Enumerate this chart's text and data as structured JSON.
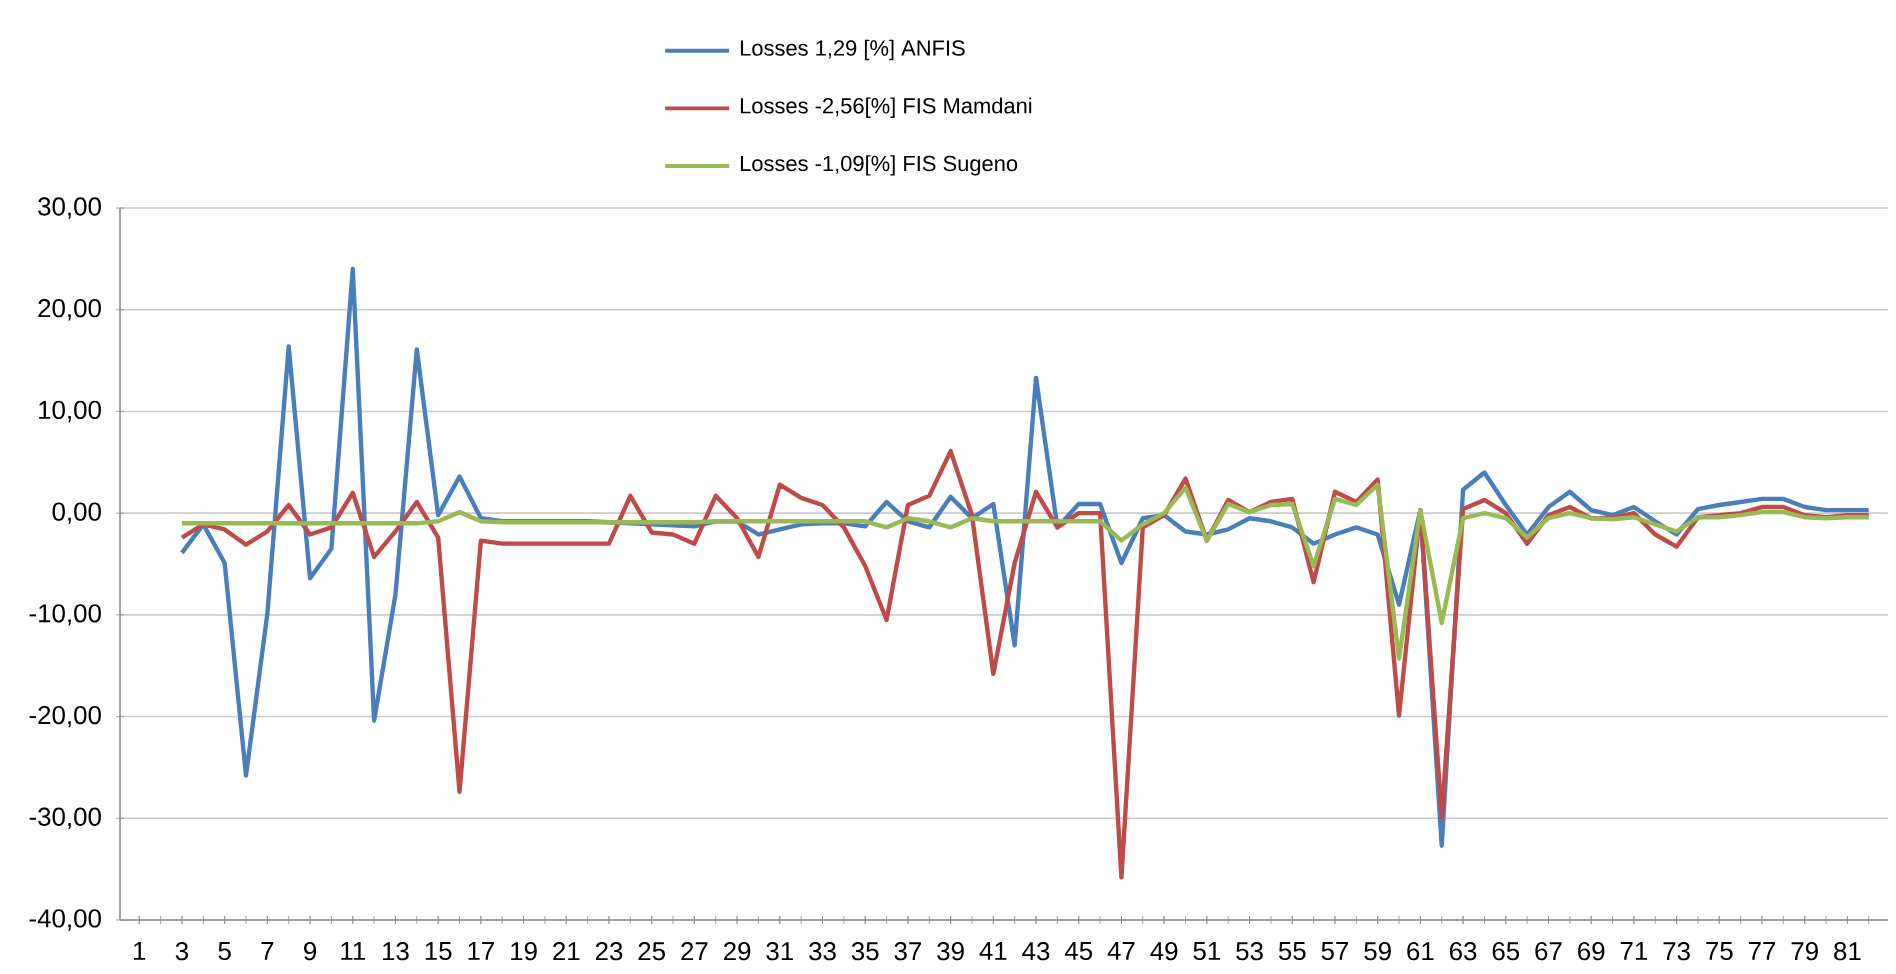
{
  "chart_data": {
    "type": "line",
    "categories": [
      "1",
      null,
      "3",
      null,
      "5",
      null,
      "7",
      null,
      "9",
      null,
      "11",
      null,
      "13",
      null,
      "15",
      null,
      "17",
      null,
      "19",
      null,
      "21",
      null,
      "23",
      null,
      "25",
      null,
      "27",
      null,
      "29",
      null,
      "31",
      null,
      "33",
      null,
      "35",
      null,
      "37",
      null,
      "39",
      null,
      "41",
      null,
      "43",
      null,
      "45",
      null,
      "47",
      null,
      "49",
      null,
      "51",
      null,
      "53",
      null,
      "55",
      null,
      "57",
      null,
      "59",
      null,
      "61",
      null,
      "63",
      null,
      "65",
      null,
      "67",
      null,
      "69",
      null,
      "71",
      null,
      "73",
      null,
      "75",
      null,
      "77",
      null,
      "79",
      null,
      "81",
      null
    ],
    "series": [
      {
        "name": "Losses  1,29 [%] ANFIS",
        "color": "#4a7ebb",
        "values": [
          null,
          null,
          -3.9,
          -1.1,
          -4.9,
          -25.8,
          -9.9,
          16.4,
          -6.4,
          -3.5,
          24,
          -20.4,
          -8,
          16.1,
          -0.2,
          3.6,
          -0.5,
          -0.8,
          -0.8,
          -0.8,
          -0.8,
          -0.8,
          -0.9,
          -1,
          -1.1,
          -1.2,
          -1.3,
          -0.8,
          -0.8,
          -2.1,
          -1.6,
          -1.1,
          -1,
          -1,
          -1.3,
          1.1,
          -0.8,
          -1.4,
          1.6,
          -0.5,
          0.9,
          -13,
          13.3,
          -1.4,
          0.9,
          0.9,
          -4.9,
          -0.5,
          -0.2,
          -1.8,
          -2.1,
          -1.6,
          -0.5,
          -0.8,
          -1.4,
          -3,
          -2.1,
          -1.4,
          -2.1,
          -9,
          0.3,
          -32.7,
          2.3,
          4,
          0.8,
          -2.1,
          0.6,
          2.1,
          0.3,
          -0.2,
          0.6,
          -0.8,
          -2.1,
          0.4,
          0.8,
          1.1,
          1.4,
          1.4,
          0.6,
          0.3,
          0.3,
          0.3
        ]
      },
      {
        "name": "Losses -2,56[%] FIS Mamdani",
        "color": "#be4b48",
        "values": [
          null,
          null,
          -2.4,
          -1.1,
          -1.6,
          -3.1,
          -1.8,
          0.8,
          -2.1,
          -1.4,
          2,
          -4.3,
          -1.8,
          1.1,
          -2.4,
          -27.4,
          -2.7,
          -3,
          -3,
          -3,
          -3,
          -3,
          -3,
          1.7,
          -1.9,
          -2.1,
          -3,
          1.7,
          -0.5,
          -4.3,
          2.8,
          1.5,
          0.8,
          -1.4,
          -5.2,
          -10.5,
          0.8,
          1.7,
          6.1,
          -0.2,
          -15.8,
          -4.9,
          2.1,
          -1.4,
          0,
          0,
          -35.8,
          -1.4,
          -0.2,
          3.4,
          -2.7,
          1.3,
          0.1,
          1.1,
          1.4,
          -6.8,
          2.1,
          1.1,
          3.3,
          -19.9,
          0.3,
          -29.9,
          0.4,
          1.3,
          0,
          -3,
          -0.2,
          0.6,
          -0.5,
          -0.5,
          0,
          -2.1,
          -3.3,
          -0.4,
          -0.2,
          0,
          0.6,
          0.6,
          -0.2,
          -0.4,
          -0.2,
          -0.2
        ]
      },
      {
        "name": "Losses -1,09[%] FIS Sugeno",
        "color": "#98b954",
        "values": [
          null,
          null,
          -1,
          -1,
          -1,
          -1,
          -1,
          -1,
          -1,
          -1,
          -1,
          -1,
          -1,
          -1,
          -0.8,
          0.1,
          -0.8,
          -0.9,
          -0.9,
          -0.9,
          -0.9,
          -0.9,
          -0.9,
          -0.9,
          -0.9,
          -0.9,
          -0.9,
          -0.8,
          -0.8,
          -0.8,
          -0.8,
          -0.8,
          -0.8,
          -0.8,
          -0.8,
          -1.4,
          -0.5,
          -0.8,
          -1.4,
          -0.5,
          -0.8,
          -0.8,
          -0.8,
          -0.8,
          -0.8,
          -0.8,
          -2.7,
          -1.1,
          0,
          2.5,
          -2.7,
          0.9,
          0.1,
          0.8,
          0.9,
          -5.2,
          1.4,
          0.8,
          2.8,
          -14.3,
          0.3,
          -10.8,
          -0.5,
          0,
          -0.5,
          -2.4,
          -0.5,
          0,
          -0.5,
          -0.6,
          -0.4,
          -1.1,
          -1.8,
          -0.4,
          -0.4,
          -0.2,
          0.1,
          0.1,
          -0.4,
          -0.5,
          -0.4,
          -0.4
        ]
      }
    ],
    "ylim": [
      -40,
      30
    ],
    "yticks": [
      {
        "value": -40,
        "label": "-40,00"
      },
      {
        "value": -30,
        "label": "-30,00"
      },
      {
        "value": -20,
        "label": "-20,00"
      },
      {
        "value": -10,
        "label": "-10,00"
      },
      {
        "value": 0,
        "label": "0,00"
      },
      {
        "value": 10,
        "label": "10,00"
      },
      {
        "value": 20,
        "label": "20,00"
      },
      {
        "value": 30,
        "label": "30,00"
      }
    ],
    "grid": "y",
    "legend": "top",
    "marker": "none",
    "line_style": "solid"
  }
}
